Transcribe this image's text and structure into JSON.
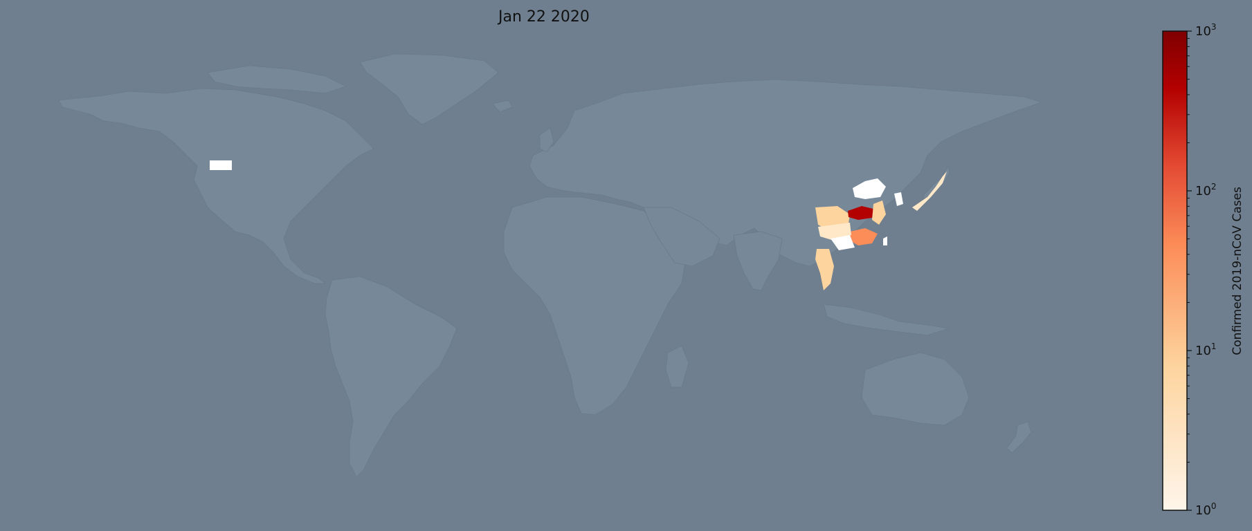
{
  "title": "Jan 22 2020",
  "colorbar": {
    "label": "Confirmed 2019-nCoV Cases",
    "scale": "log",
    "range": [
      1,
      1000
    ],
    "ticks": [
      {
        "base": "10",
        "exp": "0",
        "value": 1
      },
      {
        "base": "10",
        "exp": "1",
        "value": 10
      },
      {
        "base": "10",
        "exp": "2",
        "value": 100
      },
      {
        "base": "10",
        "exp": "3",
        "value": 1000
      }
    ],
    "colors": [
      "#fff5eb",
      "#fdd49e",
      "#fc8d59",
      "#e34a33",
      "#b30000",
      "#7f0000"
    ]
  },
  "colors": {
    "background": "#6f7f8f",
    "land": "#778899",
    "border": "#6a7a8a"
  }
}
